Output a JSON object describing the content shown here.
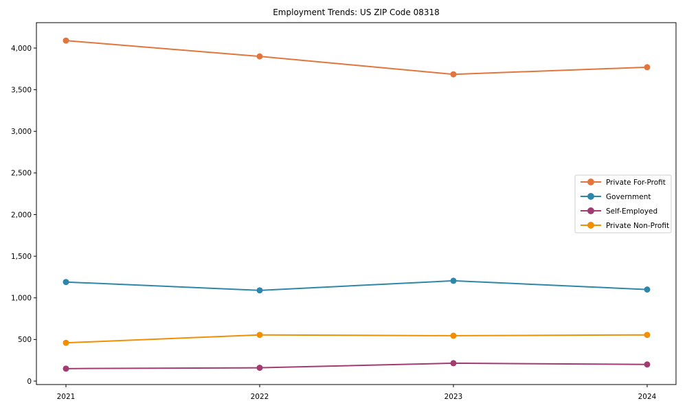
{
  "chart_data": {
    "type": "line",
    "title": "Employment Trends: US ZIP Code 08318",
    "xlabel": "",
    "ylabel": "",
    "x": [
      "2021",
      "2022",
      "2023",
      "2024"
    ],
    "series": [
      {
        "name": "Private For-Profit",
        "color": "#E2753C",
        "values": [
          4090,
          3900,
          3685,
          3770
        ]
      },
      {
        "name": "Government",
        "color": "#2E86AB",
        "values": [
          1190,
          1090,
          1205,
          1100
        ]
      },
      {
        "name": "Self-Employed",
        "color": "#A23B72",
        "values": [
          150,
          160,
          215,
          200
        ]
      },
      {
        "name": "Private Non-Profit",
        "color": "#F18F01",
        "values": [
          460,
          555,
          545,
          555
        ]
      }
    ],
    "y_ticks": [
      0,
      500,
      1000,
      1500,
      2000,
      2500,
      3000,
      3500,
      4000
    ],
    "ylim": [
      -45,
      4300
    ],
    "grid": false,
    "legend_position": "center-right",
    "legend_border_color": "#cccccc",
    "axis_color": "#000000",
    "background_color": "#ffffff",
    "marker": "circle"
  }
}
